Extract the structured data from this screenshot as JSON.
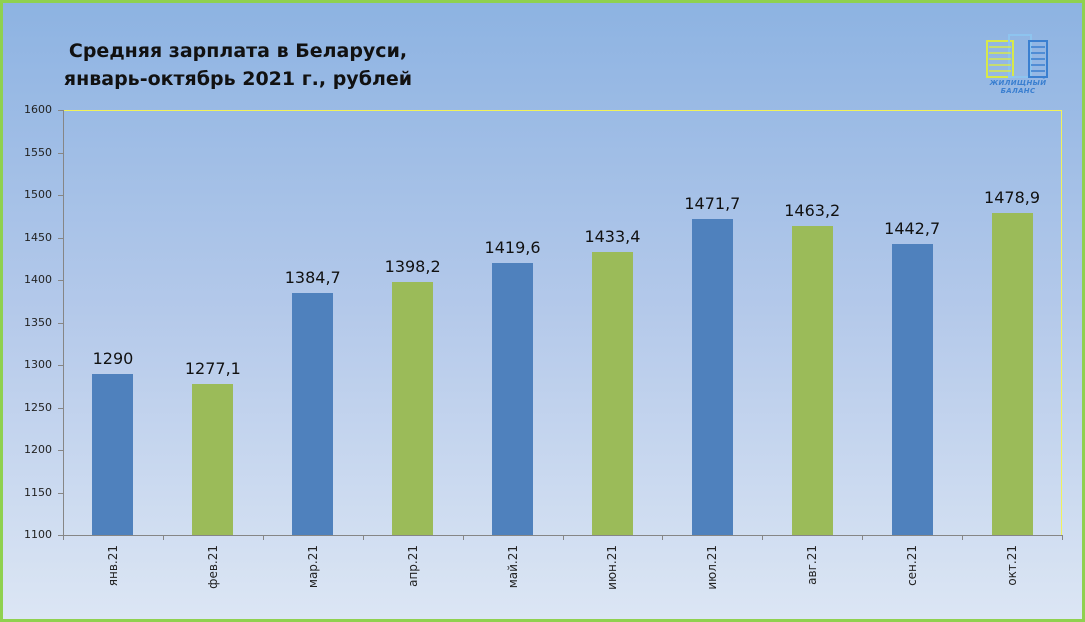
{
  "title": {
    "line1": "Средняя зарплата в Беларуси,",
    "line2": "январь-октябрь 2021 г., рублей"
  },
  "logo": {
    "text": "ЖИЛИЩНЫЙ БАЛАНС"
  },
  "colors": {
    "blue": "#4f81bd",
    "green": "#9bbb59",
    "frame": "#8fd14f",
    "plot_border": "#f2f25a"
  },
  "chart_data": {
    "type": "bar",
    "title": "Средняя зарплата в Беларуси, январь-октябрь 2021 г., рублей",
    "xlabel": "",
    "ylabel": "",
    "categories": [
      "янв.21",
      "фев.21",
      "мар.21",
      "апр.21",
      "май.21",
      "июн.21",
      "июл.21",
      "авг.21",
      "сен.21",
      "окт.21"
    ],
    "values": [
      1290,
      1277.1,
      1384.7,
      1398.2,
      1419.6,
      1433.4,
      1471.7,
      1463.2,
      1442.7,
      1478.9
    ],
    "value_labels": [
      "1290",
      "1277,1",
      "1384,7",
      "1398,2",
      "1419,6",
      "1433,4",
      "1471,7",
      "1463,2",
      "1442,7",
      "1478,9"
    ],
    "bar_colors": [
      "#4f81bd",
      "#9bbb59",
      "#4f81bd",
      "#9bbb59",
      "#4f81bd",
      "#9bbb59",
      "#4f81bd",
      "#9bbb59",
      "#4f81bd",
      "#9bbb59"
    ],
    "ylim": [
      1100,
      1600
    ],
    "yticks": [
      "1600",
      "1550",
      "1500",
      "1450",
      "1400",
      "1350",
      "1300",
      "1250",
      "1200",
      "1150",
      "1100"
    ],
    "grid": false,
    "legend": "none"
  }
}
